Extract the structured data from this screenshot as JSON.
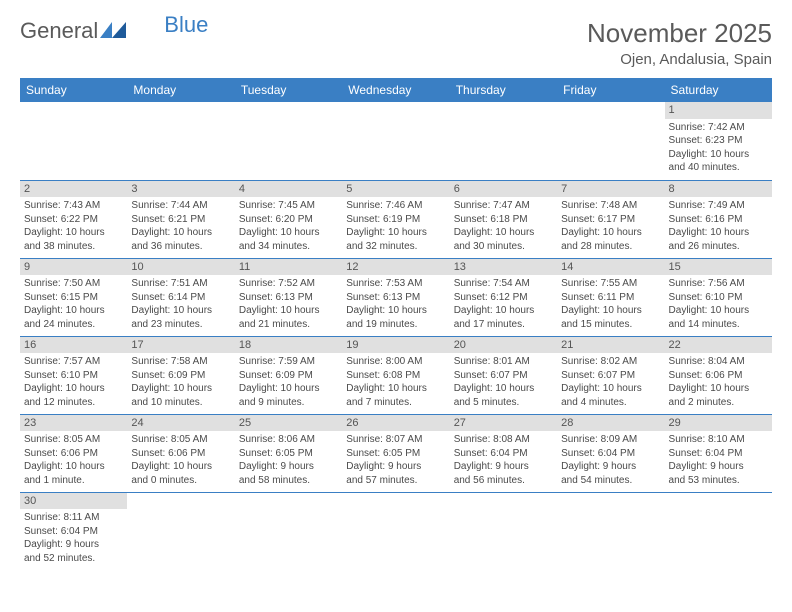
{
  "brand": {
    "part1": "General",
    "part2": "Blue"
  },
  "title": "November 2025",
  "location": "Ojen, Andalusia, Spain",
  "colors": {
    "header_bg": "#3a7fc4",
    "header_text": "#ffffff",
    "daynum_bg": "#e0e0e0",
    "text": "#4a4a4a",
    "brand_gray": "#5a5a5a",
    "brand_blue": "#3a7fc4",
    "row_border": "#3a7fc4",
    "page_bg": "#ffffff"
  },
  "typography": {
    "title_fontsize": 26,
    "location_fontsize": 15,
    "dayheader_fontsize": 12,
    "daynum_fontsize": 11,
    "cell_fontsize": 10
  },
  "day_headers": [
    "Sunday",
    "Monday",
    "Tuesday",
    "Wednesday",
    "Thursday",
    "Friday",
    "Saturday"
  ],
  "weeks": [
    [
      null,
      null,
      null,
      null,
      null,
      null,
      {
        "n": "1",
        "sunrise": "Sunrise: 7:42 AM",
        "sunset": "Sunset: 6:23 PM",
        "daylight1": "Daylight: 10 hours",
        "daylight2": "and 40 minutes."
      }
    ],
    [
      {
        "n": "2",
        "sunrise": "Sunrise: 7:43 AM",
        "sunset": "Sunset: 6:22 PM",
        "daylight1": "Daylight: 10 hours",
        "daylight2": "and 38 minutes."
      },
      {
        "n": "3",
        "sunrise": "Sunrise: 7:44 AM",
        "sunset": "Sunset: 6:21 PM",
        "daylight1": "Daylight: 10 hours",
        "daylight2": "and 36 minutes."
      },
      {
        "n": "4",
        "sunrise": "Sunrise: 7:45 AM",
        "sunset": "Sunset: 6:20 PM",
        "daylight1": "Daylight: 10 hours",
        "daylight2": "and 34 minutes."
      },
      {
        "n": "5",
        "sunrise": "Sunrise: 7:46 AM",
        "sunset": "Sunset: 6:19 PM",
        "daylight1": "Daylight: 10 hours",
        "daylight2": "and 32 minutes."
      },
      {
        "n": "6",
        "sunrise": "Sunrise: 7:47 AM",
        "sunset": "Sunset: 6:18 PM",
        "daylight1": "Daylight: 10 hours",
        "daylight2": "and 30 minutes."
      },
      {
        "n": "7",
        "sunrise": "Sunrise: 7:48 AM",
        "sunset": "Sunset: 6:17 PM",
        "daylight1": "Daylight: 10 hours",
        "daylight2": "and 28 minutes."
      },
      {
        "n": "8",
        "sunrise": "Sunrise: 7:49 AM",
        "sunset": "Sunset: 6:16 PM",
        "daylight1": "Daylight: 10 hours",
        "daylight2": "and 26 minutes."
      }
    ],
    [
      {
        "n": "9",
        "sunrise": "Sunrise: 7:50 AM",
        "sunset": "Sunset: 6:15 PM",
        "daylight1": "Daylight: 10 hours",
        "daylight2": "and 24 minutes."
      },
      {
        "n": "10",
        "sunrise": "Sunrise: 7:51 AM",
        "sunset": "Sunset: 6:14 PM",
        "daylight1": "Daylight: 10 hours",
        "daylight2": "and 23 minutes."
      },
      {
        "n": "11",
        "sunrise": "Sunrise: 7:52 AM",
        "sunset": "Sunset: 6:13 PM",
        "daylight1": "Daylight: 10 hours",
        "daylight2": "and 21 minutes."
      },
      {
        "n": "12",
        "sunrise": "Sunrise: 7:53 AM",
        "sunset": "Sunset: 6:13 PM",
        "daylight1": "Daylight: 10 hours",
        "daylight2": "and 19 minutes."
      },
      {
        "n": "13",
        "sunrise": "Sunrise: 7:54 AM",
        "sunset": "Sunset: 6:12 PM",
        "daylight1": "Daylight: 10 hours",
        "daylight2": "and 17 minutes."
      },
      {
        "n": "14",
        "sunrise": "Sunrise: 7:55 AM",
        "sunset": "Sunset: 6:11 PM",
        "daylight1": "Daylight: 10 hours",
        "daylight2": "and 15 minutes."
      },
      {
        "n": "15",
        "sunrise": "Sunrise: 7:56 AM",
        "sunset": "Sunset: 6:10 PM",
        "daylight1": "Daylight: 10 hours",
        "daylight2": "and 14 minutes."
      }
    ],
    [
      {
        "n": "16",
        "sunrise": "Sunrise: 7:57 AM",
        "sunset": "Sunset: 6:10 PM",
        "daylight1": "Daylight: 10 hours",
        "daylight2": "and 12 minutes."
      },
      {
        "n": "17",
        "sunrise": "Sunrise: 7:58 AM",
        "sunset": "Sunset: 6:09 PM",
        "daylight1": "Daylight: 10 hours",
        "daylight2": "and 10 minutes."
      },
      {
        "n": "18",
        "sunrise": "Sunrise: 7:59 AM",
        "sunset": "Sunset: 6:09 PM",
        "daylight1": "Daylight: 10 hours",
        "daylight2": "and 9 minutes."
      },
      {
        "n": "19",
        "sunrise": "Sunrise: 8:00 AM",
        "sunset": "Sunset: 6:08 PM",
        "daylight1": "Daylight: 10 hours",
        "daylight2": "and 7 minutes."
      },
      {
        "n": "20",
        "sunrise": "Sunrise: 8:01 AM",
        "sunset": "Sunset: 6:07 PM",
        "daylight1": "Daylight: 10 hours",
        "daylight2": "and 5 minutes."
      },
      {
        "n": "21",
        "sunrise": "Sunrise: 8:02 AM",
        "sunset": "Sunset: 6:07 PM",
        "daylight1": "Daylight: 10 hours",
        "daylight2": "and 4 minutes."
      },
      {
        "n": "22",
        "sunrise": "Sunrise: 8:04 AM",
        "sunset": "Sunset: 6:06 PM",
        "daylight1": "Daylight: 10 hours",
        "daylight2": "and 2 minutes."
      }
    ],
    [
      {
        "n": "23",
        "sunrise": "Sunrise: 8:05 AM",
        "sunset": "Sunset: 6:06 PM",
        "daylight1": "Daylight: 10 hours",
        "daylight2": "and 1 minute."
      },
      {
        "n": "24",
        "sunrise": "Sunrise: 8:05 AM",
        "sunset": "Sunset: 6:06 PM",
        "daylight1": "Daylight: 10 hours",
        "daylight2": "and 0 minutes."
      },
      {
        "n": "25",
        "sunrise": "Sunrise: 8:06 AM",
        "sunset": "Sunset: 6:05 PM",
        "daylight1": "Daylight: 9 hours",
        "daylight2": "and 58 minutes."
      },
      {
        "n": "26",
        "sunrise": "Sunrise: 8:07 AM",
        "sunset": "Sunset: 6:05 PM",
        "daylight1": "Daylight: 9 hours",
        "daylight2": "and 57 minutes."
      },
      {
        "n": "27",
        "sunrise": "Sunrise: 8:08 AM",
        "sunset": "Sunset: 6:04 PM",
        "daylight1": "Daylight: 9 hours",
        "daylight2": "and 56 minutes."
      },
      {
        "n": "28",
        "sunrise": "Sunrise: 8:09 AM",
        "sunset": "Sunset: 6:04 PM",
        "daylight1": "Daylight: 9 hours",
        "daylight2": "and 54 minutes."
      },
      {
        "n": "29",
        "sunrise": "Sunrise: 8:10 AM",
        "sunset": "Sunset: 6:04 PM",
        "daylight1": "Daylight: 9 hours",
        "daylight2": "and 53 minutes."
      }
    ],
    [
      {
        "n": "30",
        "sunrise": "Sunrise: 8:11 AM",
        "sunset": "Sunset: 6:04 PM",
        "daylight1": "Daylight: 9 hours",
        "daylight2": "and 52 minutes."
      },
      null,
      null,
      null,
      null,
      null,
      null
    ]
  ]
}
